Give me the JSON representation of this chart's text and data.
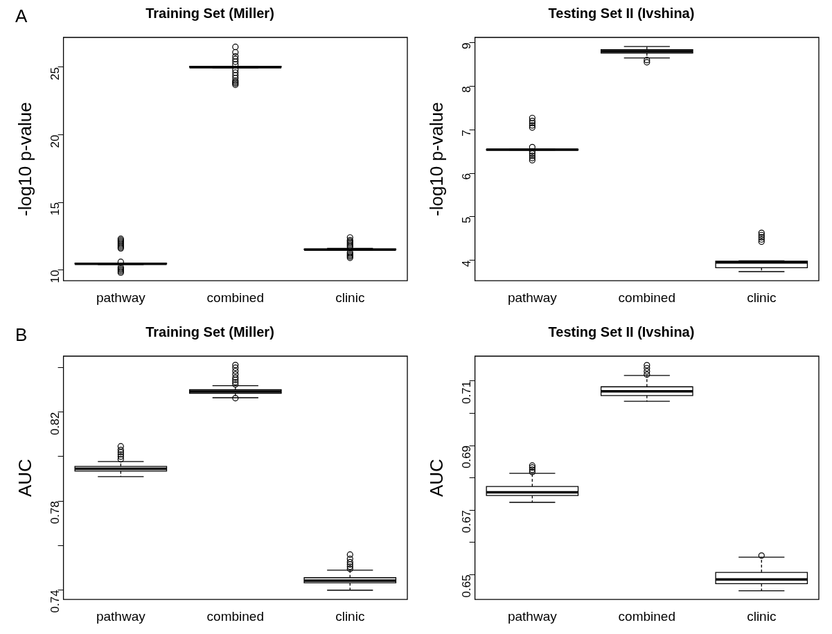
{
  "chart_data": [
    {
      "type": "box",
      "title": "Training Set (Miller)",
      "ylabel": "-log10 p-value",
      "annotations": [
        "A"
      ],
      "categories": [
        "pathway",
        "combined",
        "clinic"
      ],
      "ylim": [
        9.2,
        27.2
      ],
      "yticks": [
        10,
        15,
        20,
        25
      ],
      "boxes": [
        {
          "low": 10.4,
          "q1": 10.45,
          "median": 10.45,
          "q3": 10.5,
          "high": 10.5,
          "outliers": [
            9.8,
            9.9,
            10.0,
            10.1,
            10.2,
            10.6,
            11.6,
            11.7,
            11.8,
            11.9,
            12.0,
            12.1,
            12.2,
            12.3
          ]
        },
        {
          "low": 24.95,
          "q1": 25.0,
          "median": 25.0,
          "q3": 25.05,
          "high": 25.05,
          "outliers": [
            23.7,
            23.8,
            23.9,
            24.0,
            24.2,
            24.4,
            24.6,
            24.8,
            25.2,
            25.4,
            25.6,
            25.8,
            26.1,
            26.5
          ]
        },
        {
          "low": 11.45,
          "q1": 11.5,
          "median": 11.5,
          "q3": 11.55,
          "high": 11.6,
          "outliers": [
            10.9,
            11.0,
            11.1,
            11.2,
            11.3,
            11.7,
            11.8,
            11.9,
            12.0,
            12.1,
            12.2,
            12.4
          ]
        }
      ]
    },
    {
      "type": "box",
      "title": "Testing Set II (Ivshina)",
      "ylabel": "-log10 p-value",
      "categories": [
        "pathway",
        "combined",
        "clinic"
      ],
      "ylim": [
        3.53,
        9.12
      ],
      "yticks": [
        4,
        5,
        6,
        7,
        8,
        9
      ],
      "boxes": [
        {
          "low": 6.53,
          "q1": 6.53,
          "median": 6.54,
          "q3": 6.55,
          "high": 6.55,
          "outliers": [
            6.3,
            6.35,
            6.4,
            6.45,
            6.5,
            6.6,
            7.05,
            7.1,
            7.15,
            7.2,
            7.27
          ]
        },
        {
          "low": 8.65,
          "q1": 8.76,
          "median": 8.8,
          "q3": 8.84,
          "high": 8.91,
          "outliers": [
            8.55,
            8.6
          ]
        },
        {
          "low": 3.74,
          "q1": 3.83,
          "median": 3.95,
          "q3": 3.98,
          "high": 3.99,
          "outliers": [
            4.43,
            4.48,
            4.53,
            4.58,
            4.63
          ]
        }
      ]
    },
    {
      "type": "box",
      "title": "Training Set (Miller)",
      "ylabel": "AUC",
      "annotations": [
        "B"
      ],
      "categories": [
        "pathway",
        "combined",
        "clinic"
      ],
      "ylim": [
        0.7357,
        0.8452
      ],
      "yticks": [
        0.74,
        {
          "value": 0.76,
          "label": null
        },
        0.78,
        {
          "value": 0.8,
          "label": null
        },
        0.82,
        {
          "value": 0.84,
          "label": null
        }
      ],
      "boxes": [
        {
          "low": 0.791,
          "q1": 0.7935,
          "median": 0.7945,
          "q3": 0.7956,
          "high": 0.7978,
          "outliers": [
            0.7988,
            0.8,
            0.801,
            0.802,
            0.803,
            0.8046
          ]
        },
        {
          "low": 0.8265,
          "q1": 0.8285,
          "median": 0.8293,
          "q3": 0.8301,
          "high": 0.8319,
          "outliers": [
            0.8263,
            0.8325,
            0.8335,
            0.8345,
            0.8355,
            0.837,
            0.8385,
            0.84,
            0.8412
          ]
        },
        {
          "low": 0.7399,
          "q1": 0.7432,
          "median": 0.7442,
          "q3": 0.7455,
          "high": 0.7489,
          "outliers": [
            0.7495,
            0.7505,
            0.7515,
            0.7525,
            0.754,
            0.7559
          ]
        }
      ]
    },
    {
      "type": "box",
      "title": "Testing Set II (Ivshina)",
      "ylabel": "AUC",
      "categories": [
        "pathway",
        "combined",
        "clinic"
      ],
      "ylim": [
        0.6423,
        0.7177
      ],
      "yticks": [
        0.65,
        {
          "value": 0.66,
          "label": null
        },
        0.67,
        {
          "value": 0.68,
          "label": null
        },
        0.69,
        {
          "value": 0.7,
          "label": null
        },
        0.71
      ],
      "boxes": [
        {
          "low": 0.6724,
          "q1": 0.6745,
          "median": 0.6755,
          "q3": 0.6773,
          "high": 0.6814,
          "outliers": [
            0.6818,
            0.6825,
            0.6832,
            0.6838
          ]
        },
        {
          "low": 0.7037,
          "q1": 0.7055,
          "median": 0.7068,
          "q3": 0.7082,
          "high": 0.7117,
          "outliers": [
            0.712,
            0.713,
            0.714,
            0.7149
          ]
        },
        {
          "low": 0.645,
          "q1": 0.6472,
          "median": 0.6485,
          "q3": 0.6507,
          "high": 0.6554,
          "outliers": [
            0.6559
          ]
        }
      ]
    }
  ]
}
